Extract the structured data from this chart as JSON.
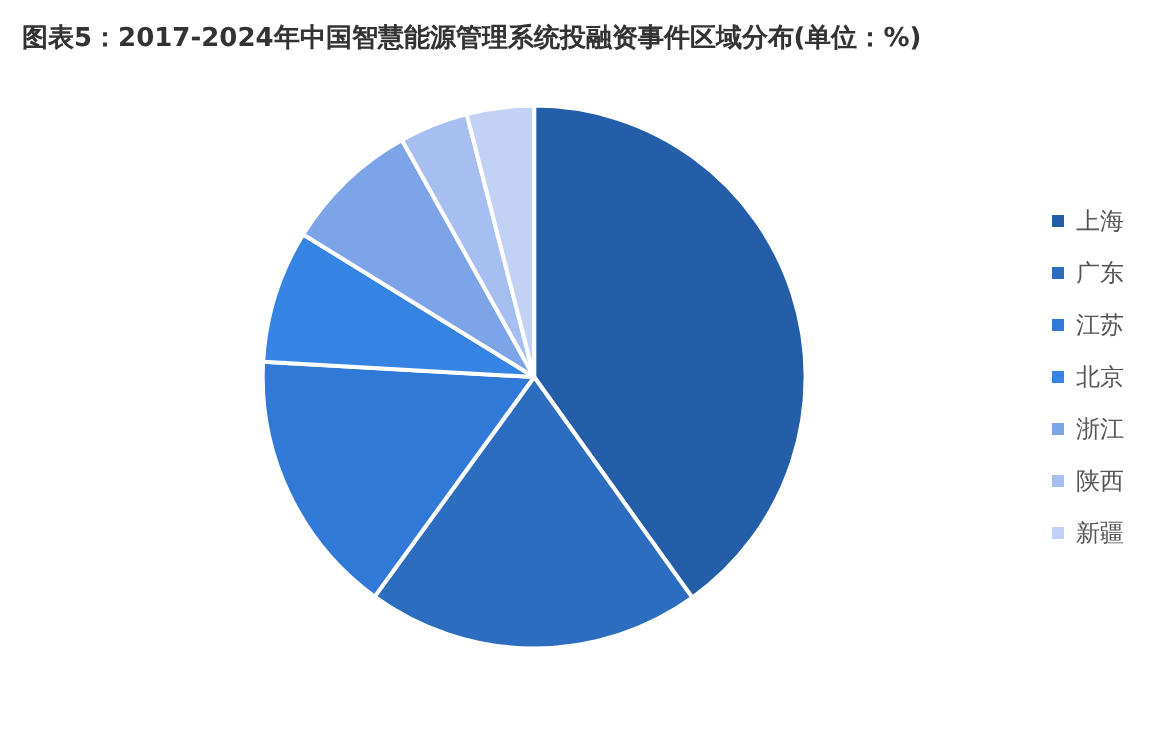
{
  "chart_data": {
    "type": "pie",
    "title": "图表5：2017-2024年中国智慧能源管理系统投融资事件区域分布(单位：%)",
    "categories": [
      "上海",
      "广东",
      "江苏",
      "北京",
      "浙江",
      "陕西",
      "新疆"
    ],
    "values": [
      40.1,
      19.9,
      15.9,
      7.9,
      8.1,
      4.1,
      4.0
    ],
    "colors": [
      "#245ea8",
      "#2c6dc0",
      "#3179d6",
      "#3584e4",
      "#7ea4e8",
      "#a6bff0",
      "#c3d2f4"
    ],
    "legend": "right"
  }
}
